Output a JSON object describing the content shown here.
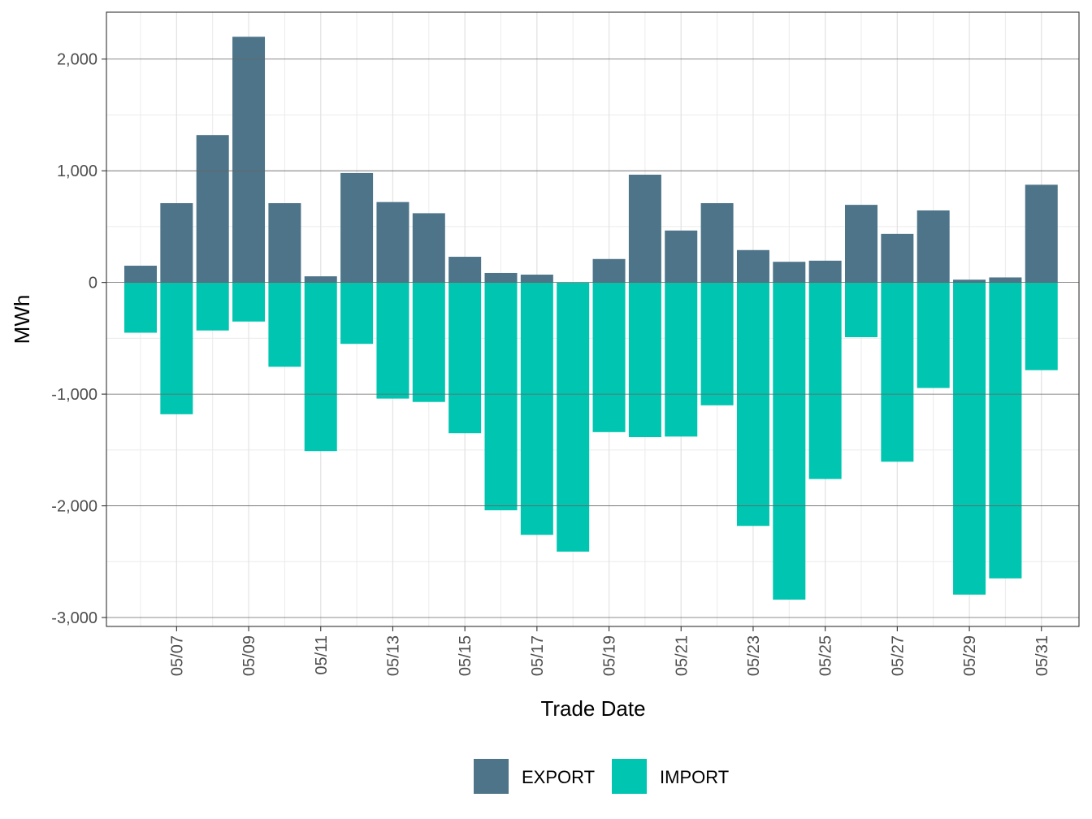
{
  "chart_data": {
    "type": "bar",
    "stacked": "diverging",
    "xlabel": "Trade Date",
    "ylabel": "MWh",
    "ylim": [
      -3080,
      2420
    ],
    "yticks": [
      -3000,
      -2000,
      -1000,
      0,
      1000,
      2000
    ],
    "ytick_labels": [
      "-3,000",
      "-2,000",
      "-1,000",
      "0",
      "1,000",
      "2,000"
    ],
    "x": [
      "05/06",
      "05/07",
      "05/08",
      "05/09",
      "05/10",
      "05/11",
      "05/12",
      "05/13",
      "05/14",
      "05/15",
      "05/16",
      "05/17",
      "05/18",
      "05/19",
      "05/20",
      "05/21",
      "05/22",
      "05/23",
      "05/24",
      "05/25",
      "05/26",
      "05/27",
      "05/28",
      "05/29",
      "05/30",
      "05/31"
    ],
    "xtick_labels": [
      "05/07",
      "05/09",
      "05/11",
      "05/13",
      "05/15",
      "05/17",
      "05/19",
      "05/21",
      "05/23",
      "05/25",
      "05/27",
      "05/29",
      "05/31"
    ],
    "series": [
      {
        "name": "EXPORT",
        "color": "#4e7489",
        "values": [
          150,
          710,
          1320,
          2200,
          710,
          55,
          980,
          720,
          620,
          230,
          85,
          70,
          0,
          210,
          965,
          465,
          710,
          290,
          185,
          195,
          695,
          435,
          645,
          25,
          45,
          875
        ]
      },
      {
        "name": "IMPORT",
        "color": "#00c5b0",
        "values": [
          -450,
          -1180,
          -430,
          -350,
          -755,
          -1510,
          -550,
          -1040,
          -1070,
          -1350,
          -2040,
          -2260,
          -2410,
          -1340,
          -1385,
          -1380,
          -1100,
          -2180,
          -2840,
          -1760,
          -490,
          -1605,
          -945,
          -2795,
          -2650,
          -785
        ]
      }
    ],
    "legend": {
      "position": "bottom",
      "labels": [
        "EXPORT",
        "IMPORT"
      ]
    },
    "grid": true
  }
}
